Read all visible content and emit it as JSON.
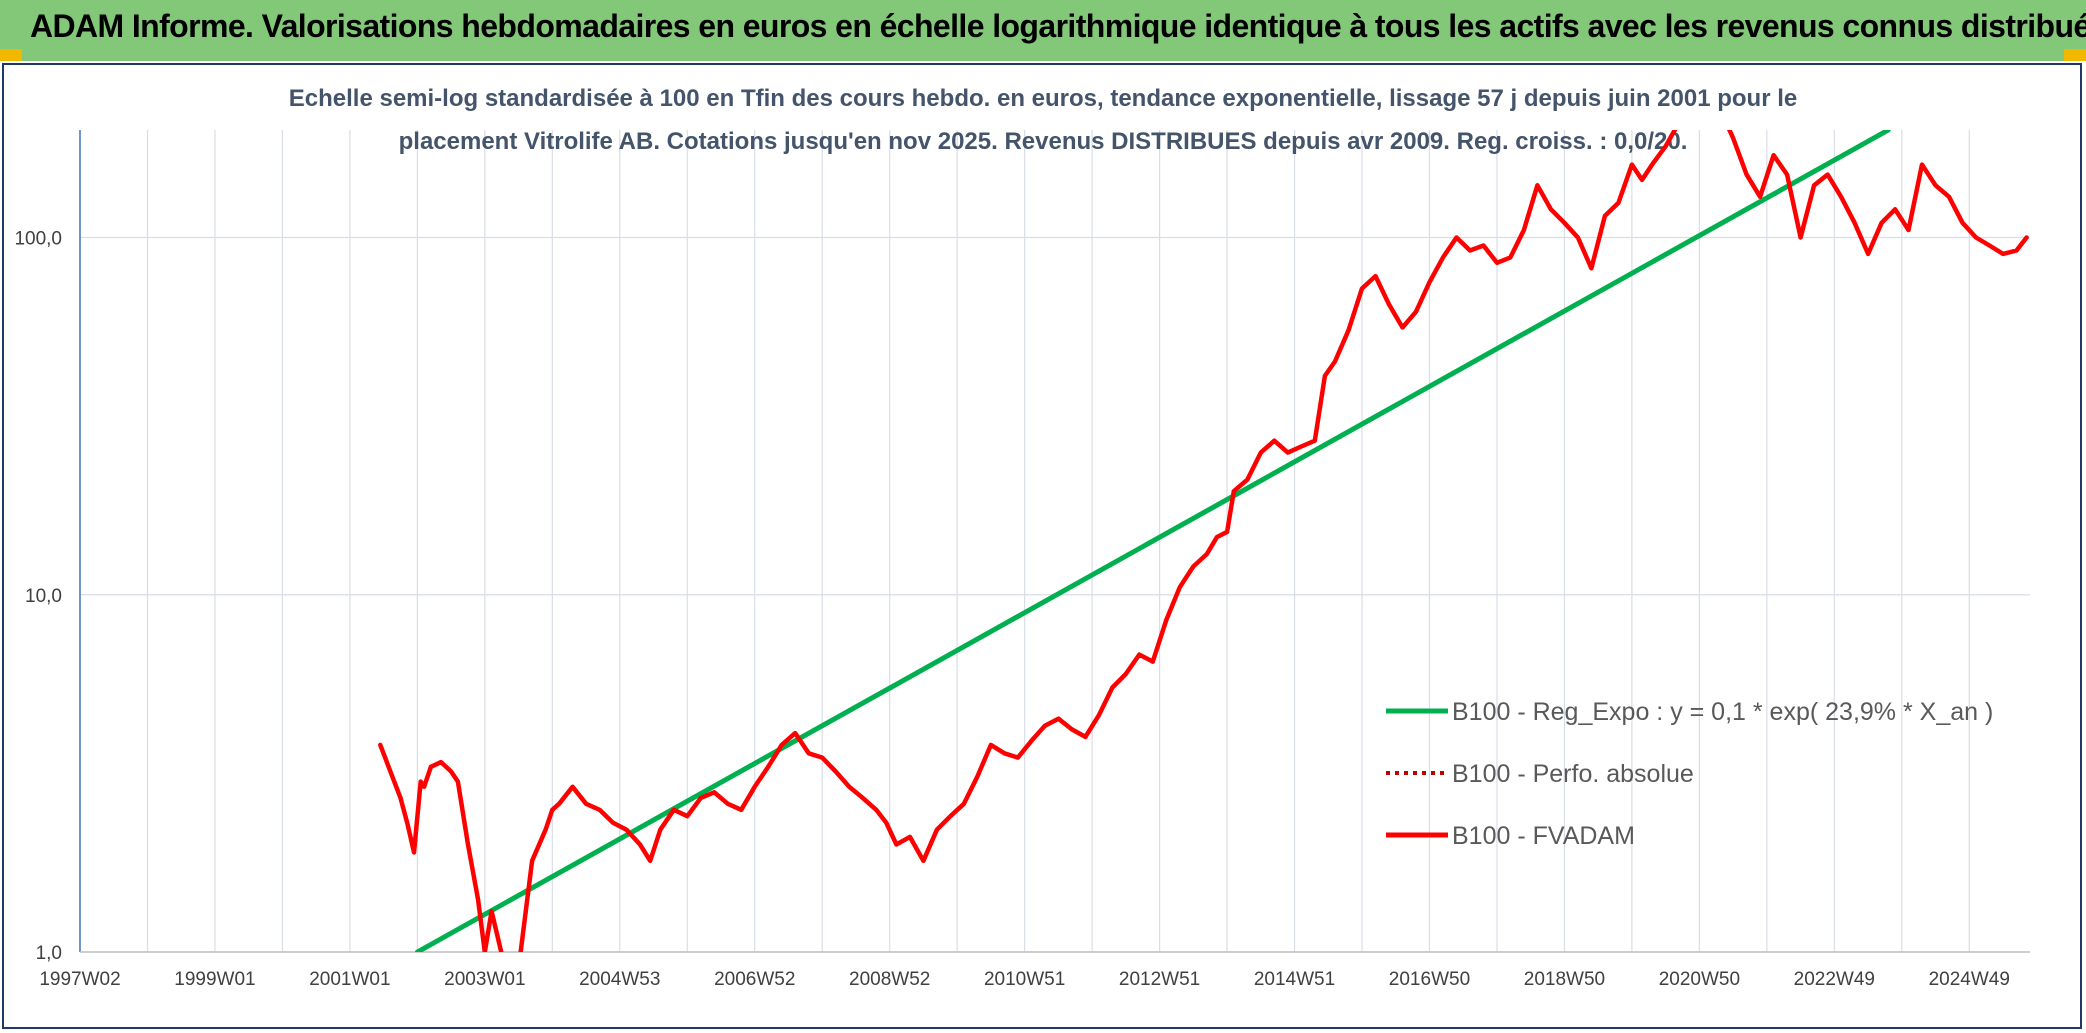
{
  "page_title": "ADAM Informe. Valorisations hebdomadaires en euros en échelle logarithmique identique à tous les actifs avec les revenus connus distribués",
  "colors": {
    "banner": "#82c878",
    "accent_corner": "#f2b800",
    "trend_line": "#00b050",
    "fvadam_line": "#ff0000",
    "perfo_line": "#c00000",
    "grid": "#d9dde6",
    "axis_text": "#404040",
    "subtitle_text": "#44546a"
  },
  "chart_data": {
    "type": "line",
    "title_line1": "Echelle semi-log standardisée à 100 en Tfin des cours hebdo. en euros, tendance exponentielle, lissage 57 j depuis juin 2001 pour le",
    "title_line2": "placement Vitrolife AB. Cotations jusqu'en nov 2025. Revenus DISTRIBUES depuis avr 2009. Reg. croiss. : 0,0/20.",
    "y_scale": "log",
    "ylim": [
      1,
      200
    ],
    "y_ticks": [
      1,
      10,
      100
    ],
    "y_tick_labels": [
      "1,0",
      "10,0",
      "100,0"
    ],
    "xlim": [
      1997.0,
      2025.9
    ],
    "x_ticks": [
      1997.0,
      1999.0,
      2001.0,
      2003.0,
      2005.0,
      2007.0,
      2009.0,
      2011.0,
      2013.0,
      2015.0,
      2017.0,
      2019.0,
      2021.0,
      2023.0,
      2025.0
    ],
    "x_tick_labels": [
      "1997W02",
      "1999W01",
      "2001W01",
      "2003W01",
      "2004W53",
      "2006W52",
      "2008W52",
      "2010W51",
      "2012W51",
      "2014W51",
      "2016W50",
      "2018W50",
      "2020W50",
      "2022W49",
      "2024W49"
    ],
    "grid": true,
    "legend_position": "right-middle",
    "series": [
      {
        "name": "B100 - Reg_Expo : y = 0,1 * exp( 23,9% *  X_an )",
        "style": "solid",
        "color": "#00b050",
        "x": [
          2002.0,
          2023.8
        ],
        "y": [
          1.0,
          200
        ]
      },
      {
        "name": "B100 - Perfo. absolue",
        "style": "dotted",
        "color": "#c00000",
        "x": [],
        "y": []
      },
      {
        "name": "B100 - FVADAM",
        "style": "solid",
        "color": "#ff0000",
        "x": [
          2001.45,
          2001.6,
          2001.75,
          2001.85,
          2001.95,
          2002.05,
          2002.1,
          2002.2,
          2002.35,
          2002.5,
          2002.6,
          2002.75,
          2002.9,
          2003.0,
          2003.1,
          2003.3,
          2003.5,
          2003.7,
          2003.9,
          2004.0,
          2004.1,
          2004.3,
          2004.5,
          2004.7,
          2004.9,
          2005.1,
          2005.3,
          2005.45,
          2005.6,
          2005.8,
          2006.0,
          2006.2,
          2006.4,
          2006.6,
          2006.8,
          2007.0,
          2007.2,
          2007.4,
          2007.6,
          2007.8,
          2008.0,
          2008.2,
          2008.4,
          2008.6,
          2008.8,
          2008.95,
          2009.1,
          2009.3,
          2009.5,
          2009.7,
          2009.9,
          2010.1,
          2010.3,
          2010.5,
          2010.7,
          2010.9,
          2011.1,
          2011.3,
          2011.5,
          2011.7,
          2011.9,
          2012.1,
          2012.3,
          2012.5,
          2012.7,
          2012.9,
          2013.1,
          2013.3,
          2013.5,
          2013.7,
          2013.85,
          2014.0,
          2014.1,
          2014.3,
          2014.5,
          2014.7,
          2014.9,
          2015.1,
          2015.3,
          2015.45,
          2015.6,
          2015.8,
          2016.0,
          2016.2,
          2016.4,
          2016.6,
          2016.8,
          2017.0,
          2017.2,
          2017.4,
          2017.6,
          2017.8,
          2018.0,
          2018.2,
          2018.4,
          2018.6,
          2018.8,
          2019.0,
          2019.2,
          2019.4,
          2019.6,
          2019.8,
          2020.0,
          2020.15,
          2020.3,
          2020.5,
          2020.7,
          2020.9,
          2021.1,
          2021.3,
          2021.5,
          2021.7,
          2021.9,
          2022.1,
          2022.3,
          2022.5,
          2022.7,
          2022.9,
          2023.1,
          2023.3,
          2023.5,
          2023.7,
          2023.9,
          2024.1,
          2024.3,
          2024.5,
          2024.7,
          2024.9,
          2025.1,
          2025.3,
          2025.5,
          2025.7,
          2025.85
        ],
        "y": [
          3.8,
          3.2,
          2.7,
          2.3,
          1.9,
          3.0,
          2.9,
          3.3,
          3.4,
          3.2,
          3.0,
          2.0,
          1.4,
          1.0,
          1.3,
          0.9,
          0.9,
          1.8,
          2.2,
          2.5,
          2.6,
          2.9,
          2.6,
          2.5,
          2.3,
          2.2,
          2.0,
          1.8,
          2.2,
          2.5,
          2.4,
          2.7,
          2.8,
          2.6,
          2.5,
          2.9,
          3.3,
          3.8,
          4.1,
          3.6,
          3.5,
          3.2,
          2.9,
          2.7,
          2.5,
          2.3,
          2.0,
          2.1,
          1.8,
          2.2,
          2.4,
          2.6,
          3.1,
          3.8,
          3.6,
          3.5,
          3.9,
          4.3,
          4.5,
          4.2,
          4.0,
          4.6,
          5.5,
          6.0,
          6.8,
          6.5,
          8.5,
          10.5,
          12.0,
          13.0,
          14.5,
          15.0,
          19.5,
          21.0,
          25.0,
          27.0,
          25.0,
          26.0,
          27.0,
          41.0,
          45.0,
          55.0,
          72.0,
          78.0,
          65.0,
          56.0,
          62.0,
          75.0,
          88.0,
          100.0,
          92.0,
          95.0,
          85.0,
          88.0,
          105.0,
          140.0,
          120.0,
          110.0,
          100.0,
          82.0,
          115.0,
          125.0,
          160.0,
          145.0,
          160.0,
          180.0,
          210.0,
          220.0,
          240.0,
          230.0,
          190.0,
          150.0,
          130.0,
          170.0,
          150.0,
          100.0,
          140.0,
          150.0,
          130.0,
          110.0,
          90.0,
          110.0,
          120.0,
          105.0,
          160.0,
          140.0,
          130.0,
          110.0,
          100.0,
          95.0,
          90.0,
          92.0,
          100.0
        ]
      }
    ]
  }
}
